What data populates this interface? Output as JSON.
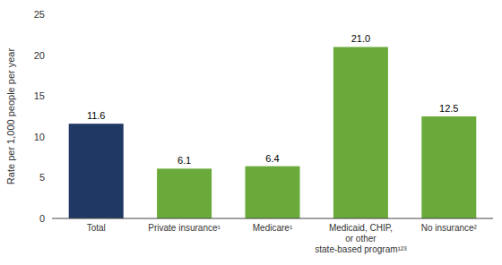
{
  "chart_data": {
    "type": "bar",
    "categories": [
      "Total",
      "Private insurance¹",
      "Medicare¹",
      "Medicaid, CHIP,\nor other\nstate-based program¹²³",
      "No insurance²"
    ],
    "values": [
      11.6,
      6.1,
      6.4,
      21.0,
      12.5
    ],
    "value_labels": [
      "11.6",
      "6.1",
      "6.4",
      "21.0",
      "12.5"
    ],
    "colors": [
      "#1f3864",
      "#6aaa3a",
      "#6aaa3a",
      "#6aaa3a",
      "#6aaa3a"
    ],
    "ylabel": "Rate per 1,000 people per year",
    "ylim": [
      0,
      25
    ],
    "yticks": [
      0,
      5,
      10,
      15,
      20,
      25
    ],
    "data_labels": true,
    "grid": false
  }
}
